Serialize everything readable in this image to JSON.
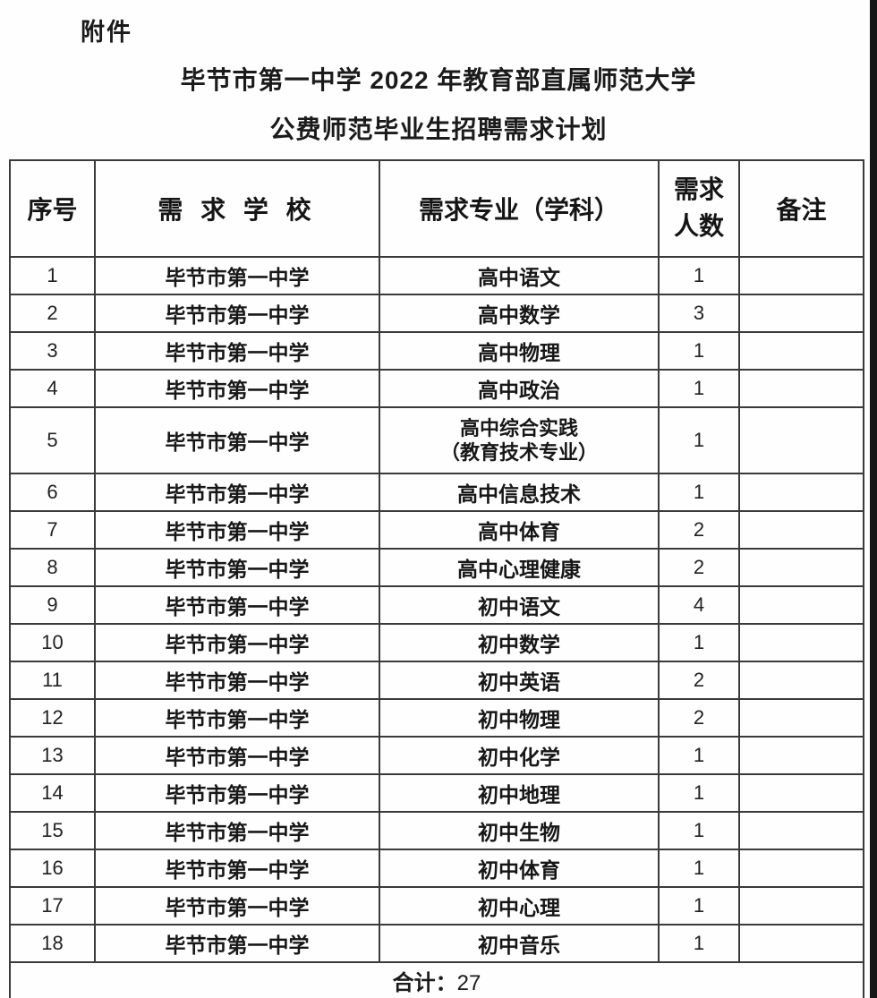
{
  "page": {
    "attachment_label": "附件",
    "title_line1": "毕节市第一中学 2022 年教育部直属师范大学",
    "title_line2": "公费师范毕业生招聘需求计划"
  },
  "table": {
    "headers": {
      "index": "序号",
      "school": "需 求 学 校",
      "major": "需求专业（学科）",
      "count_line1": "需求",
      "count_line2": "人数",
      "remark": "备注"
    },
    "rows": [
      {
        "index": "1",
        "school": "毕节市第一中学",
        "major": "高中语文",
        "count": "1",
        "remark": ""
      },
      {
        "index": "2",
        "school": "毕节市第一中学",
        "major": "高中数学",
        "count": "3",
        "remark": ""
      },
      {
        "index": "3",
        "school": "毕节市第一中学",
        "major": "高中物理",
        "count": "1",
        "remark": ""
      },
      {
        "index": "4",
        "school": "毕节市第一中学",
        "major": "高中政治",
        "count": "1",
        "remark": ""
      },
      {
        "index": "5",
        "school": "毕节市第一中学",
        "major": "高中综合实践",
        "major_line2": "（教育技术专业）",
        "count": "1",
        "remark": ""
      },
      {
        "index": "6",
        "school": "毕节市第一中学",
        "major": "高中信息技术",
        "count": "1",
        "remark": ""
      },
      {
        "index": "7",
        "school": "毕节市第一中学",
        "major": "高中体育",
        "count": "2",
        "remark": ""
      },
      {
        "index": "8",
        "school": "毕节市第一中学",
        "major": "高中心理健康",
        "count": "2",
        "remark": ""
      },
      {
        "index": "9",
        "school": "毕节市第一中学",
        "major": "初中语文",
        "count": "4",
        "remark": ""
      },
      {
        "index": "10",
        "school": "毕节市第一中学",
        "major": "初中数学",
        "count": "1",
        "remark": ""
      },
      {
        "index": "11",
        "school": "毕节市第一中学",
        "major": "初中英语",
        "count": "2",
        "remark": ""
      },
      {
        "index": "12",
        "school": "毕节市第一中学",
        "major": "初中物理",
        "count": "2",
        "remark": ""
      },
      {
        "index": "13",
        "school": "毕节市第一中学",
        "major": "初中化学",
        "count": "1",
        "remark": ""
      },
      {
        "index": "14",
        "school": "毕节市第一中学",
        "major": "初中地理",
        "count": "1",
        "remark": ""
      },
      {
        "index": "15",
        "school": "毕节市第一中学",
        "major": "初中生物",
        "count": "1",
        "remark": ""
      },
      {
        "index": "16",
        "school": "毕节市第一中学",
        "major": "初中体育",
        "count": "1",
        "remark": ""
      },
      {
        "index": "17",
        "school": "毕节市第一中学",
        "major": "初中心理",
        "count": "1",
        "remark": ""
      },
      {
        "index": "18",
        "school": "毕节市第一中学",
        "major": "初中音乐",
        "count": "1",
        "remark": ""
      }
    ],
    "total_label": "合计：",
    "total_value": "27"
  }
}
